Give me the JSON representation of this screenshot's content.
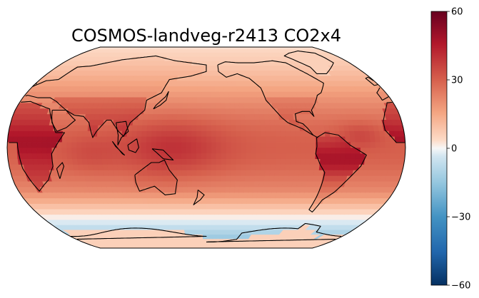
{
  "title": "COSMOS-landveg-r2413 CO2x4",
  "map": {
    "projection": "robinson",
    "central_longitude": 180,
    "coastlines": true,
    "field_description_hint": "temperature-difference style field, warmest over tropical land and western Pacific"
  },
  "colorbar": {
    "colormap": "RdBu_r",
    "vmin": -60,
    "vmax": 60,
    "ticks": [
      {
        "value": 60,
        "label": "60"
      },
      {
        "value": 30,
        "label": "30"
      },
      {
        "value": 0,
        "label": "0"
      },
      {
        "value": -30,
        "label": "−30"
      },
      {
        "value": -60,
        "label": "−60"
      }
    ],
    "colors": {
      "top": "#67001f",
      "upper": "#d6604d",
      "mid": "#f7f7f7",
      "lower": "#4393c3",
      "bottom": "#053061"
    }
  }
}
